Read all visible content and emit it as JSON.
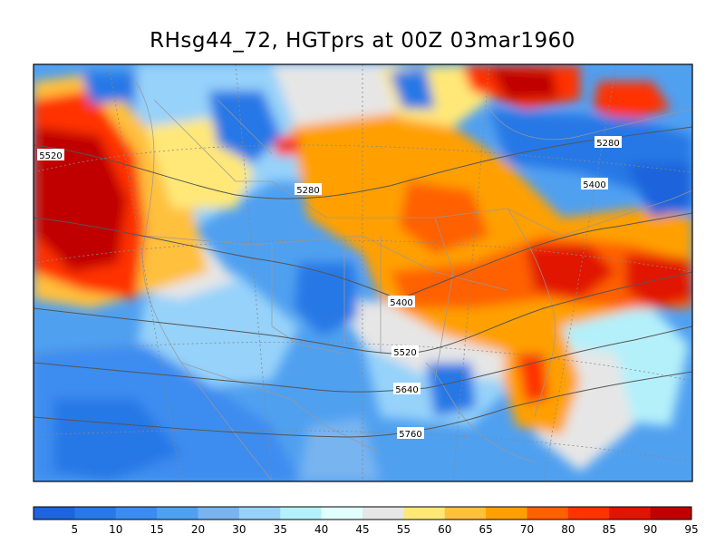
{
  "title": "RHsg44_72, HGTprs at 00Z  03mar1960",
  "map": {
    "fill_field": "RHsg44_72",
    "contour_field": "HGTprs",
    "contour_labels": [
      {
        "value": "5520",
        "id": "w"
      },
      {
        "value": "5280",
        "id": "c"
      },
      {
        "value": "5280",
        "id": "ne"
      },
      {
        "value": "5400",
        "id": "e"
      },
      {
        "value": "5400",
        "id": "mid"
      },
      {
        "value": "5520",
        "id": "s"
      },
      {
        "value": "5640",
        "id": "s2"
      },
      {
        "value": "5760",
        "id": "s3"
      }
    ]
  },
  "colorbar": {
    "labels": [
      "5",
      "10",
      "15",
      "20",
      "30",
      "35",
      "40",
      "45",
      "55",
      "60",
      "65",
      "70",
      "80",
      "85",
      "90",
      "95"
    ],
    "colors": [
      "#1e64dc",
      "#2878e6",
      "#3c8cf0",
      "#50a0f0",
      "#78b4f0",
      "#96d2fa",
      "#b4f0fa",
      "#e1ffff",
      "#e6e6e6",
      "#ffe878",
      "#ffc03c",
      "#ffa000",
      "#ff6000",
      "#ff3200",
      "#e11400",
      "#c00000"
    ]
  },
  "colors": {
    "dry": "#3c8cf0",
    "moist": "#e11400"
  }
}
